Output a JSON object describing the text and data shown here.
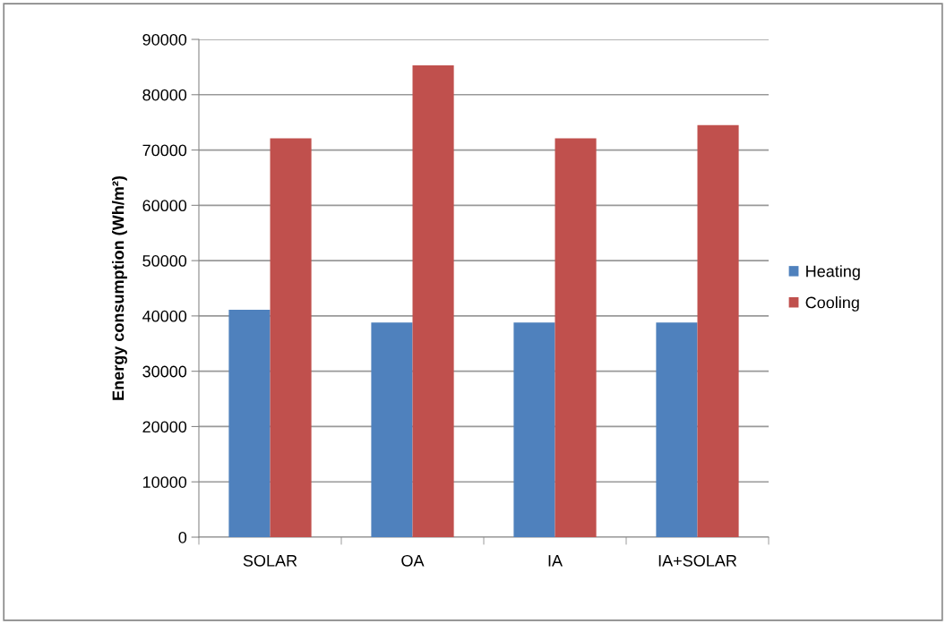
{
  "chart_data": {
    "type": "bar",
    "ylabel": "Energy consumption (Wh/m²)",
    "categories": [
      "SOLAR",
      "OA",
      "IA",
      "IA+SOLAR"
    ],
    "series": [
      {
        "name": "Heating",
        "color": "#4f81bd",
        "values": [
          41100,
          38800,
          38800,
          38800
        ]
      },
      {
        "name": "Cooling",
        "color": "#c0504d",
        "values": [
          72100,
          85300,
          72100,
          74500
        ]
      }
    ],
    "ylim": [
      0,
      90000
    ],
    "yticks": [
      0,
      10000,
      20000,
      30000,
      40000,
      50000,
      60000,
      70000,
      80000,
      90000
    ],
    "grid": "y",
    "legend": "right"
  }
}
